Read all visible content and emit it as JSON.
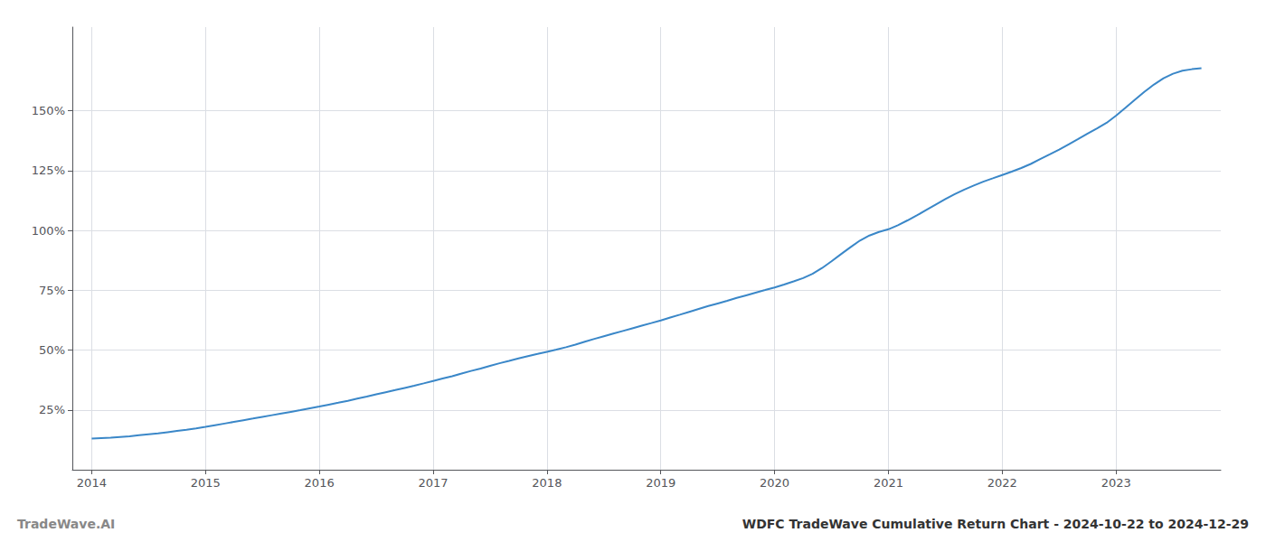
{
  "chart_data": {
    "type": "line",
    "title": "WDFC TradeWave Cumulative Return Chart - 2024-10-22 to 2024-12-29",
    "annotations": [
      "TradeWave.AI"
    ],
    "color": "#3a87c8",
    "grid": true,
    "xlim": [
      2013.83,
      2023.92
    ],
    "xticks": [
      2014,
      2015,
      2016,
      2017,
      2018,
      2019,
      2020,
      2021,
      2022,
      2023
    ],
    "ylim": [
      0.0,
      1.85
    ],
    "yticks": [
      {
        "value": 0.25,
        "label": "25%"
      },
      {
        "value": 0.5,
        "label": "50%"
      },
      {
        "value": 0.75,
        "label": "75%"
      },
      {
        "value": 1.0,
        "label": "100%"
      },
      {
        "value": 1.25,
        "label": "125%"
      },
      {
        "value": 1.5,
        "label": "150%"
      }
    ],
    "x": [
      2014.0,
      2014.083,
      2014.167,
      2014.25,
      2014.333,
      2014.417,
      2014.5,
      2014.583,
      2014.667,
      2014.75,
      2014.833,
      2014.917,
      2015.0,
      2015.083,
      2015.167,
      2015.25,
      2015.333,
      2015.417,
      2015.5,
      2015.583,
      2015.667,
      2015.75,
      2015.833,
      2015.917,
      2016.0,
      2016.083,
      2016.167,
      2016.25,
      2016.333,
      2016.417,
      2016.5,
      2016.583,
      2016.667,
      2016.75,
      2016.833,
      2016.917,
      2017.0,
      2017.083,
      2017.167,
      2017.25,
      2017.333,
      2017.417,
      2017.5,
      2017.583,
      2017.667,
      2017.75,
      2017.833,
      2017.917,
      2018.0,
      2018.083,
      2018.167,
      2018.25,
      2018.333,
      2018.417,
      2018.5,
      2018.583,
      2018.667,
      2018.75,
      2018.833,
      2018.917,
      2019.0,
      2019.083,
      2019.167,
      2019.25,
      2019.333,
      2019.417,
      2019.5,
      2019.583,
      2019.667,
      2019.75,
      2019.833,
      2019.917,
      2020.0,
      2020.083,
      2020.167,
      2020.25,
      2020.333,
      2020.417,
      2020.5,
      2020.583,
      2020.667,
      2020.75,
      2020.833,
      2020.917,
      2021.0,
      2021.083,
      2021.167,
      2021.25,
      2021.333,
      2021.417,
      2021.5,
      2021.583,
      2021.667,
      2021.75,
      2021.833,
      2021.917,
      2022.0,
      2022.083,
      2022.167,
      2022.25,
      2022.333,
      2022.417,
      2022.5,
      2022.583,
      2022.667,
      2022.75,
      2022.833,
      2022.917,
      2023.0,
      2023.083,
      2023.167,
      2023.25,
      2023.333,
      2023.417,
      2023.5,
      2023.583,
      2023.667,
      2023.75
    ],
    "values": [
      0.13,
      0.132,
      0.134,
      0.137,
      0.14,
      0.144,
      0.148,
      0.152,
      0.157,
      0.162,
      0.167,
      0.173,
      0.179,
      0.186,
      0.193,
      0.2,
      0.207,
      0.214,
      0.221,
      0.228,
      0.235,
      0.242,
      0.249,
      0.257,
      0.264,
      0.272,
      0.28,
      0.288,
      0.297,
      0.306,
      0.315,
      0.324,
      0.333,
      0.342,
      0.351,
      0.361,
      0.371,
      0.381,
      0.391,
      0.402,
      0.413,
      0.423,
      0.434,
      0.445,
      0.455,
      0.465,
      0.475,
      0.484,
      0.493,
      0.502,
      0.512,
      0.523,
      0.535,
      0.547,
      0.558,
      0.569,
      0.58,
      0.591,
      0.602,
      0.613,
      0.624,
      0.636,
      0.648,
      0.66,
      0.672,
      0.684,
      0.695,
      0.706,
      0.718,
      0.729,
      0.74,
      0.751,
      0.762,
      0.774,
      0.787,
      0.801,
      0.819,
      0.843,
      0.871,
      0.901,
      0.93,
      0.958,
      0.979,
      0.994,
      1.005,
      1.022,
      1.042,
      1.063,
      1.086,
      1.109,
      1.131,
      1.152,
      1.171,
      1.188,
      1.204,
      1.218,
      1.232,
      1.246,
      1.261,
      1.278,
      1.298,
      1.318,
      1.338,
      1.36,
      1.382,
      1.405,
      1.427,
      1.45,
      1.48,
      1.513,
      1.547,
      1.58,
      1.61,
      1.636,
      1.655,
      1.668,
      1.674,
      1.678
    ]
  }
}
